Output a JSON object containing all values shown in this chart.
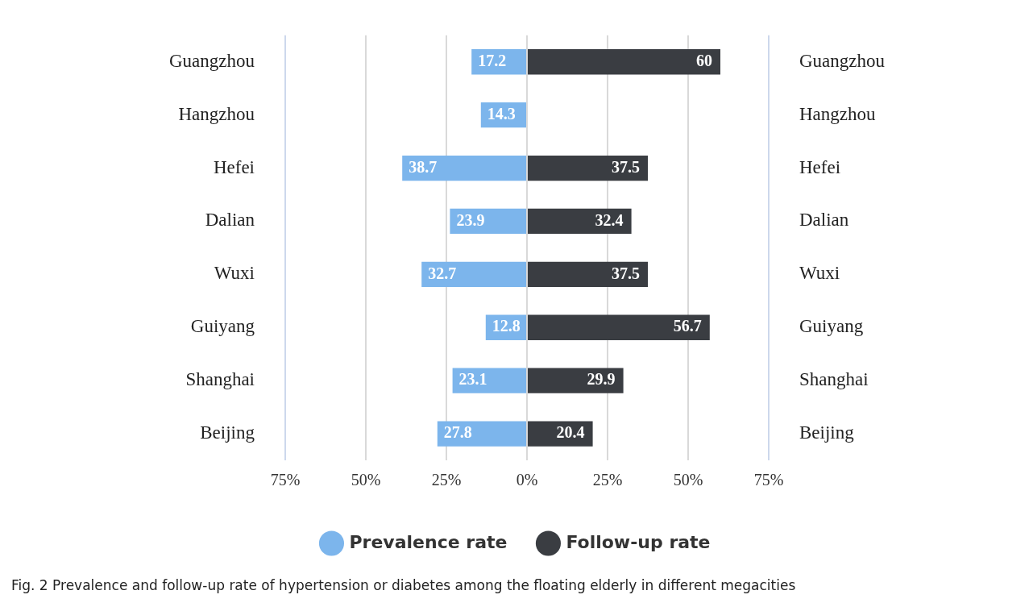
{
  "chart_data": {
    "type": "bar",
    "orientation": "horizontal",
    "categories": [
      "Guangzhou",
      "Hangzhou",
      "Hefei",
      "Dalian",
      "Wuxi",
      "Guiyang",
      "Shanghai",
      "Beijing"
    ],
    "series": [
      {
        "name": "Prevalence rate",
        "color": "#7cb5ec",
        "values": [
          17.2,
          14.3,
          38.7,
          23.9,
          32.7,
          12.8,
          23.1,
          27.8
        ],
        "base": [
          -17.2,
          -14.3,
          -38.7,
          -23.9,
          -32.7,
          -12.8,
          -23.1,
          -27.8
        ],
        "value_labels": [
          "17.2",
          "14.3",
          "38.7",
          "23.9",
          "32.7",
          "12.8",
          "23.1",
          "27.8"
        ]
      },
      {
        "name": "Follow-up rate",
        "color": "#3a3d42",
        "values": [
          60,
          null,
          37.5,
          32.4,
          37.5,
          56.7,
          29.9,
          20.4
        ],
        "value_labels": [
          "60",
          null,
          "37.5",
          "32.4",
          "37.5",
          "56.7",
          "29.9",
          "20.4"
        ]
      }
    ],
    "xlim": [
      -75,
      75
    ],
    "xticks": [
      {
        "value": -75,
        "label": "75%"
      },
      {
        "value": -50,
        "label": "50%"
      },
      {
        "value": -25,
        "label": "25%"
      },
      {
        "value": 0,
        "label": "0%"
      },
      {
        "value": 25,
        "label": "25%"
      },
      {
        "value": 50,
        "label": "50%"
      },
      {
        "value": 75,
        "label": "75%"
      }
    ],
    "grid": "x",
    "legend": "bottom",
    "annotations": [
      "Fig. 2 Prevalence and follow-up rate of hypertension or diabetes among the floating elderly in different megacities"
    ]
  }
}
